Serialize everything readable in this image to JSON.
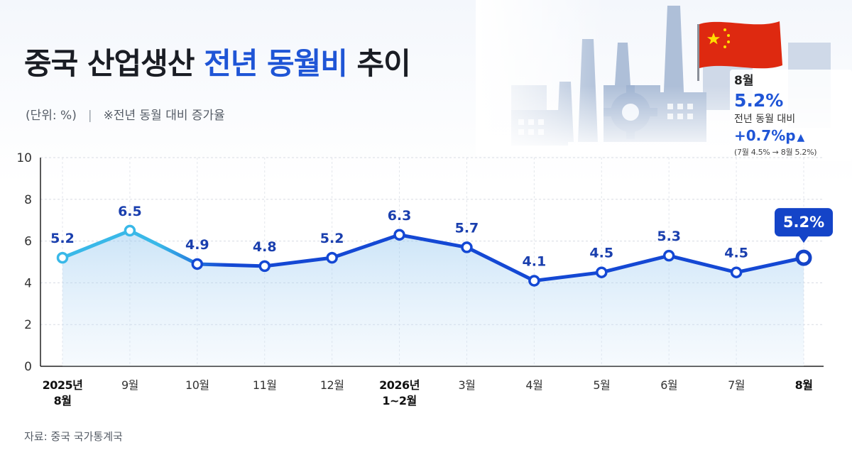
{
  "header": {
    "title_part1": "중국 산업생산",
    "title_highlight": "전년 동월비",
    "title_part3": "추이",
    "unit": "(단위: %)",
    "separator": "|",
    "note": "※전년 동월 대비 증가율"
  },
  "info_box": {
    "month": "8월",
    "value": "5.2%",
    "label": "전년 동월 대비",
    "change": "+0.7%p",
    "change_arrow": "▲",
    "detail": "(7월 4.5% → 8월 5.2%)"
  },
  "source": "자료: 중국 국가통계국",
  "colors": {
    "accent": "#1f55d6",
    "line_start": "#39b8e8",
    "line_end": "#1448d4",
    "callout_bg": "#1444c8",
    "flag_red": "#de2910",
    "flag_yellow": "#ffde00"
  },
  "icons": [
    "factory-skyline-illustration",
    "gear-icon",
    "china-flag"
  ],
  "chart_data": {
    "type": "line",
    "title": "",
    "xlabel": "",
    "ylabel": "",
    "ylim": [
      0,
      10
    ],
    "yticks": [
      0,
      2,
      4,
      6,
      8,
      10
    ],
    "grid": true,
    "categories": [
      [
        "2025년",
        "8월"
      ],
      [
        "9월"
      ],
      [
        "10월"
      ],
      [
        "11월"
      ],
      [
        "12월"
      ],
      [
        "2026년",
        "1~2월"
      ],
      [
        "3월"
      ],
      [
        "4월"
      ],
      [
        "5월"
      ],
      [
        "6월"
      ],
      [
        "7월"
      ],
      [
        "8월"
      ]
    ],
    "bold_categories": [
      0,
      5,
      11
    ],
    "values": [
      5.2,
      6.5,
      4.9,
      4.8,
      5.2,
      6.3,
      5.7,
      4.1,
      4.5,
      5.3,
      4.5,
      5.2
    ],
    "value_labels": [
      "5.2",
      "6.5",
      "4.9",
      "4.8",
      "5.2",
      "6.3",
      "5.7",
      "4.1",
      "4.5",
      "5.3",
      "4.5",
      "5.2"
    ],
    "highlight_index": 11,
    "highlight_label": "5.2%"
  }
}
